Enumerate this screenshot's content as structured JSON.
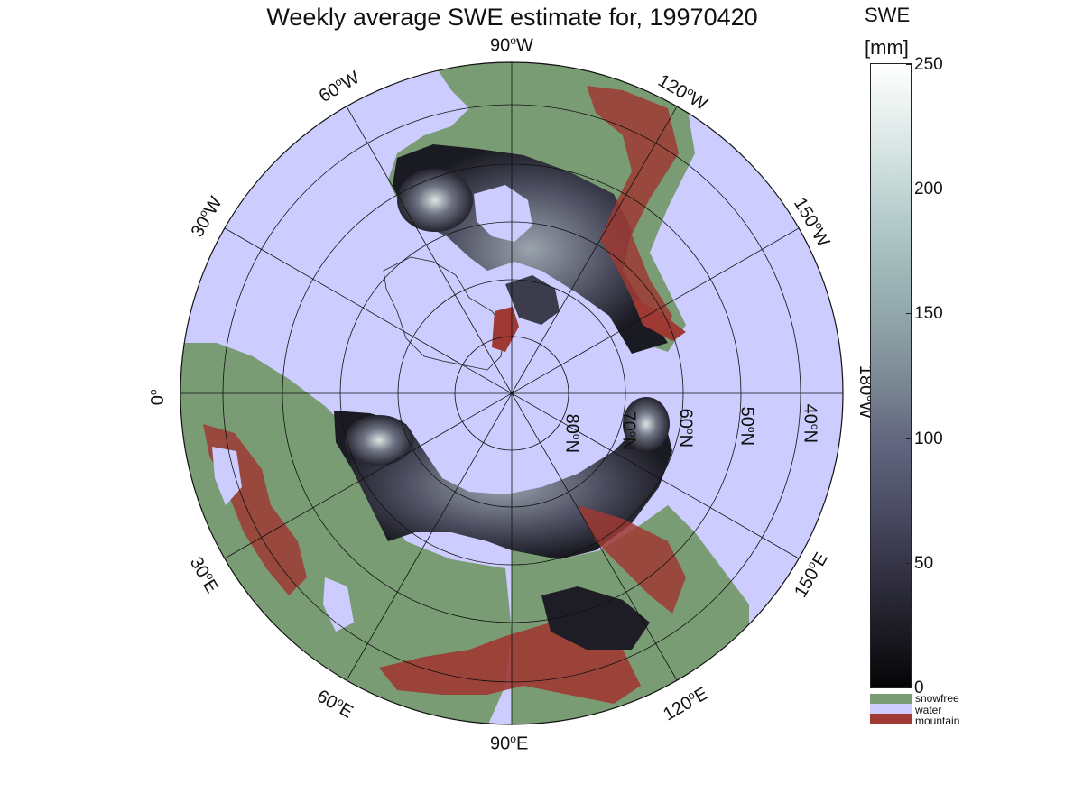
{
  "title": "Weekly average SWE estimate for, 19970420",
  "map": {
    "projection": "north-polar-stereographic",
    "longitude_labels": [
      {
        "text": "90",
        "suffix": "W"
      },
      {
        "text": "60",
        "suffix": "W"
      },
      {
        "text": "120",
        "suffix": "W"
      },
      {
        "text": "30",
        "suffix": "W"
      },
      {
        "text": "150",
        "suffix": "W"
      },
      {
        "text": "0",
        "suffix": ""
      },
      {
        "text": "180",
        "suffix": "W"
      },
      {
        "text": "30",
        "suffix": "E"
      },
      {
        "text": "150",
        "suffix": "E"
      },
      {
        "text": "60",
        "suffix": "E"
      },
      {
        "text": "120",
        "suffix": "E"
      },
      {
        "text": "90",
        "suffix": "E"
      }
    ],
    "latitude_labels": [
      {
        "text": "80",
        "suffix": "N"
      },
      {
        "text": "70",
        "suffix": "N"
      },
      {
        "text": "60",
        "suffix": "N"
      },
      {
        "text": "50",
        "suffix": "N"
      },
      {
        "text": "40",
        "suffix": "N"
      }
    ],
    "colors": {
      "water": "#ccccff",
      "snowfree": "#7a9c74",
      "mountain": "#9e3a33",
      "swe_low": "#050507",
      "swe_high": "#ffffff"
    }
  },
  "colorbar": {
    "title": "SWE",
    "unit": "[mm]",
    "min": 0,
    "max": 250,
    "ticks": [
      "0",
      "50",
      "100",
      "150",
      "200",
      "250"
    ]
  },
  "legend": [
    {
      "label": "snowfree",
      "color": "#7a9c74"
    },
    {
      "label": "water",
      "color": "#ccccff"
    },
    {
      "label": "mountain",
      "color": "#9e3a33"
    }
  ]
}
